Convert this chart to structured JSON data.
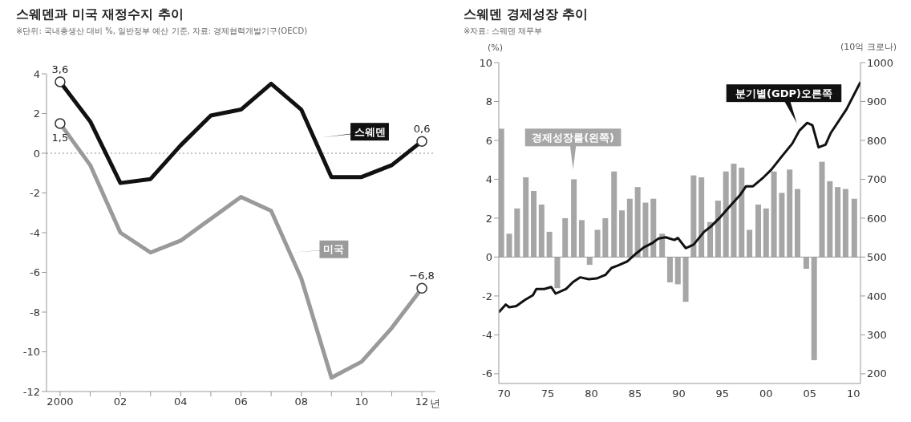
{
  "chart_data": [
    {
      "type": "line",
      "title": "스웨덴과 미국 재정수지 추이",
      "subtitle": "※단위: 국내총생산 대비 %, 일반정부 예산 기준, 자료: 경제협력개발기구(OECD)",
      "x": [
        2000,
        2001,
        2002,
        2003,
        2004,
        2005,
        2006,
        2007,
        2008,
        2009,
        2010,
        2011,
        2012
      ],
      "series": [
        {
          "name": "스웨덴",
          "color": "#111111",
          "values": [
            3.6,
            1.6,
            -1.5,
            -1.3,
            0.4,
            1.9,
            2.2,
            3.5,
            2.2,
            -1.2,
            -1.2,
            -0.6,
            0.6
          ],
          "value_labels": [
            "3,6",
            null,
            null,
            null,
            null,
            null,
            null,
            null,
            null,
            null,
            null,
            null,
            "0,6"
          ]
        },
        {
          "name": "미국",
          "color": "#9a9a9a",
          "values": [
            1.5,
            -0.6,
            -4.0,
            -5.0,
            -4.4,
            -3.3,
            -2.2,
            -2.9,
            -6.3,
            -11.3,
            -10.5,
            -8.8,
            -6.8
          ],
          "value_labels": [
            "1,5",
            null,
            null,
            null,
            null,
            null,
            null,
            null,
            null,
            null,
            null,
            null,
            "−6,8"
          ]
        }
      ],
      "xlim": [
        1999.55,
        2012.45
      ],
      "xticks": [
        2000,
        {
          "value": 2001,
          "label": null
        },
        {
          "value": 2002,
          "label": "02"
        },
        {
          "value": 2003,
          "label": null
        },
        {
          "value": 2004,
          "label": "04"
        },
        {
          "value": 2005,
          "label": null
        },
        {
          "value": 2006,
          "label": "06"
        },
        {
          "value": 2007,
          "label": null
        },
        {
          "value": 2008,
          "label": "08"
        },
        {
          "value": 2009,
          "label": null
        },
        {
          "value": 2010,
          "label": "10"
        },
        {
          "value": 2011,
          "label": null
        },
        {
          "value": 2012,
          "label": "12"
        }
      ],
      "xlabel": "년",
      "ylim": [
        -12,
        4
      ],
      "yticks": [
        -12,
        -10,
        -8,
        -6,
        -4,
        -2,
        0,
        2,
        4
      ],
      "ref_lines": [
        {
          "axis": "y",
          "value": 0,
          "color": "#8c8c8c",
          "line_style": "dotted"
        }
      ],
      "line_style": "solid",
      "grid": false,
      "legend": false
    },
    {
      "type": "bar",
      "title": "스웨덴 경제성장 추이",
      "subtitle": "※자료: 스웨덴 재무부",
      "ylabel": "(%)",
      "y2label": "(10억 크로나)",
      "series": [
        {
          "name": "경제성장률(왼쪽)",
          "type": "bar",
          "color": "#a6a6a6",
          "x": [
            1969.7,
            1970.6,
            1971.5,
            1972.5,
            1973.4,
            1974.3,
            1975.2,
            1976.1,
            1977.0,
            1978.0,
            1978.9,
            1979.8,
            1980.7,
            1981.6,
            1982.6,
            1983.5,
            1984.4,
            1985.3,
            1986.2,
            1987.1,
            1988.1,
            1989.0,
            1989.9,
            1990.8,
            1991.7,
            1992.6,
            1993.6,
            1994.5,
            1995.4,
            1996.3,
            1997.2,
            1998.1,
            1999.1,
            2000.0,
            2000.9,
            2001.8,
            2002.7,
            2003.6,
            2004.6,
            2005.5,
            2006.4,
            2007.3,
            2008.2,
            2009.1,
            2010.1
          ],
          "values": [
            6.6,
            1.2,
            2.5,
            4.1,
            3.4,
            2.7,
            1.3,
            -1.6,
            2.0,
            4.0,
            1.9,
            -0.4,
            1.4,
            2.0,
            4.4,
            2.4,
            3.0,
            3.6,
            2.8,
            3.0,
            1.2,
            -1.3,
            -1.4,
            -2.3,
            4.2,
            4.1,
            1.8,
            2.9,
            4.4,
            4.8,
            4.6,
            1.4,
            2.7,
            2.5,
            4.4,
            3.3,
            4.5,
            3.5,
            -0.6,
            -5.3,
            4.9,
            3.9,
            3.6,
            3.5,
            3.0
          ]
        },
        {
          "name": "분기별(GDP)오른쪽",
          "type": "line",
          "axis": "y2",
          "color": "#111111",
          "x": [
            1969.4,
            1970.2,
            1970.6,
            1971.4,
            1972.4,
            1973.3,
            1973.7,
            1974.6,
            1975.4,
            1975.9,
            1977.1,
            1977.9,
            1978.7,
            1979.7,
            1980.6,
            1981.6,
            1982.3,
            1983.1,
            1984.1,
            1985.0,
            1986.0,
            1986.9,
            1987.7,
            1988.5,
            1989.5,
            1989.9,
            1990.8,
            1991.7,
            1992.9,
            1993.7,
            1994.6,
            1995.9,
            1997.0,
            1997.7,
            1998.5,
            1999.7,
            2000.6,
            2001.8,
            2003.0,
            2003.8,
            2004.7,
            2005.3,
            2006.0,
            2006.8,
            2007.4,
            2009.2,
            2010.8
          ],
          "values": [
            358,
            378,
            371,
            374,
            390,
            402,
            418,
            418,
            423,
            406,
            418,
            436,
            448,
            443,
            445,
            454,
            472,
            479,
            489,
            507,
            525,
            535,
            548,
            551,
            544,
            549,
            523,
            532,
            565,
            579,
            599,
            632,
            659,
            682,
            682,
            705,
            725,
            759,
            792,
            825,
            845,
            839,
            782,
            789,
            819,
            880,
            950
          ]
        }
      ],
      "xlim": [
        1969.4,
        2010.8
      ],
      "xticks": [
        {
          "value": 1970,
          "label": "70"
        },
        {
          "value": 1975,
          "label": "75"
        },
        {
          "value": 1980,
          "label": "80"
        },
        {
          "value": 1985,
          "label": "85"
        },
        {
          "value": 1990,
          "label": "90"
        },
        {
          "value": 1995,
          "label": "95"
        },
        {
          "value": 2000,
          "label": "00"
        },
        {
          "value": 2005,
          "label": "05"
        },
        {
          "value": 2010,
          "label": "10"
        }
      ],
      "ylim": [
        -6.5,
        10
      ],
      "yticks": [
        -6,
        -4,
        -2,
        0,
        2,
        4,
        6,
        8,
        10
      ],
      "y2lim": [
        175,
        1000
      ],
      "y2ticks": [
        200,
        300,
        400,
        500,
        600,
        700,
        800,
        900,
        1000
      ],
      "ref_lines": [
        {
          "axis": "y",
          "value": 0,
          "color": "#999999",
          "line_style": "solid"
        }
      ],
      "marker": "none",
      "line_style": "solid",
      "grid": false,
      "legend": false
    }
  ]
}
